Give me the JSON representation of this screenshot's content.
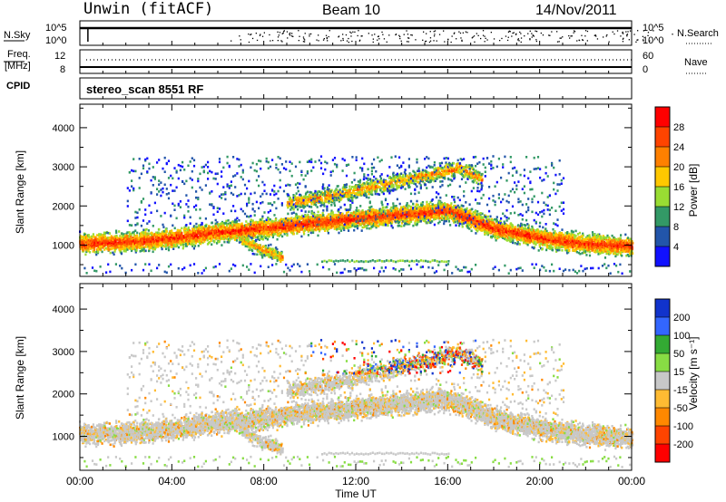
{
  "header": {
    "station": "Unwin (fitACF)",
    "beam": "Beam 10",
    "date": "14/Nov/2011"
  },
  "strip_panels": {
    "nsky": {
      "left_label": "N.Sky",
      "left_ticks": [
        "10^5",
        "10^0"
      ],
      "right_ticks": [
        "10^5",
        "10^0"
      ],
      "right_label": "N.Search"
    },
    "freq": {
      "left_label_line1": "Freq.",
      "left_label_line2": "[MHz]",
      "left_ticks": [
        "12",
        "8"
      ],
      "right_ticks": [
        "60",
        "0"
      ],
      "right_label": "Nave"
    },
    "cpid": {
      "label": "CPID",
      "program": "stereo_scan 8551 RF"
    }
  },
  "chart_data": [
    {
      "type": "heatmap",
      "title": "",
      "panel": "power",
      "ylabel": "Slant Range [km]",
      "ylim": [
        200,
        4600
      ],
      "yticks": [
        1000,
        2000,
        3000,
        4000
      ],
      "xlabel": "",
      "x_hours": [
        0,
        4,
        8,
        12,
        16,
        20,
        24
      ],
      "colorbar": {
        "label": "Power [dB]",
        "ticks": [
          "28",
          "24",
          "20",
          "16",
          "12",
          "8",
          "4"
        ],
        "colors": [
          "#ff0000",
          "#ff4400",
          "#ff8000",
          "#ffc800",
          "#99dd33",
          "#339966",
          "#2255aa",
          "#1111ff"
        ]
      },
      "bands": [
        {
          "name": "main_echo",
          "points": [
            [
              0,
              1050
            ],
            [
              2,
              1100
            ],
            [
              4,
              1200
            ],
            [
              6,
              1350
            ],
            [
              8,
              1450
            ],
            [
              10,
              1580
            ],
            [
              12,
              1700
            ],
            [
              14,
              1800
            ],
            [
              16,
              1900
            ],
            [
              18,
              1450
            ],
            [
              20,
              1200
            ],
            [
              22,
              1050
            ],
            [
              24,
              1000
            ]
          ],
          "width_km": 350
        },
        {
          "name": "upper_echo",
          "points": [
            [
              9,
              2100
            ],
            [
              11,
              2300
            ],
            [
              13,
              2550
            ],
            [
              15,
              2800
            ],
            [
              16.5,
              3000
            ],
            [
              17.5,
              2700
            ]
          ],
          "width_km": 300
        },
        {
          "name": "lower_spur",
          "points": [
            [
              7,
              1150
            ],
            [
              8,
              900
            ],
            [
              8.8,
              700
            ]
          ],
          "width_km": 250
        }
      ]
    },
    {
      "type": "heatmap",
      "title": "",
      "panel": "velocity",
      "ylabel": "Slant Range [km]",
      "ylim": [
        200,
        4600
      ],
      "yticks": [
        1000,
        2000,
        3000,
        4000
      ],
      "xlabel": "Time UT",
      "x_ticklabels": [
        "00:00",
        "04:00",
        "08:00",
        "12:00",
        "16:00",
        "20:00",
        "00:00"
      ],
      "colorbar": {
        "label": "Velocity [m s⁻¹]",
        "ticks": [
          "200",
          "100",
          "50",
          "15",
          "-15",
          "-50",
          "-100",
          "-200"
        ],
        "colors": [
          "#1133cc",
          "#3366ff",
          "#33aa33",
          "#88dd44",
          "#c8c8c8",
          "#ffbb33",
          "#ff8800",
          "#ff4400",
          "#ff0000"
        ]
      }
    }
  ]
}
